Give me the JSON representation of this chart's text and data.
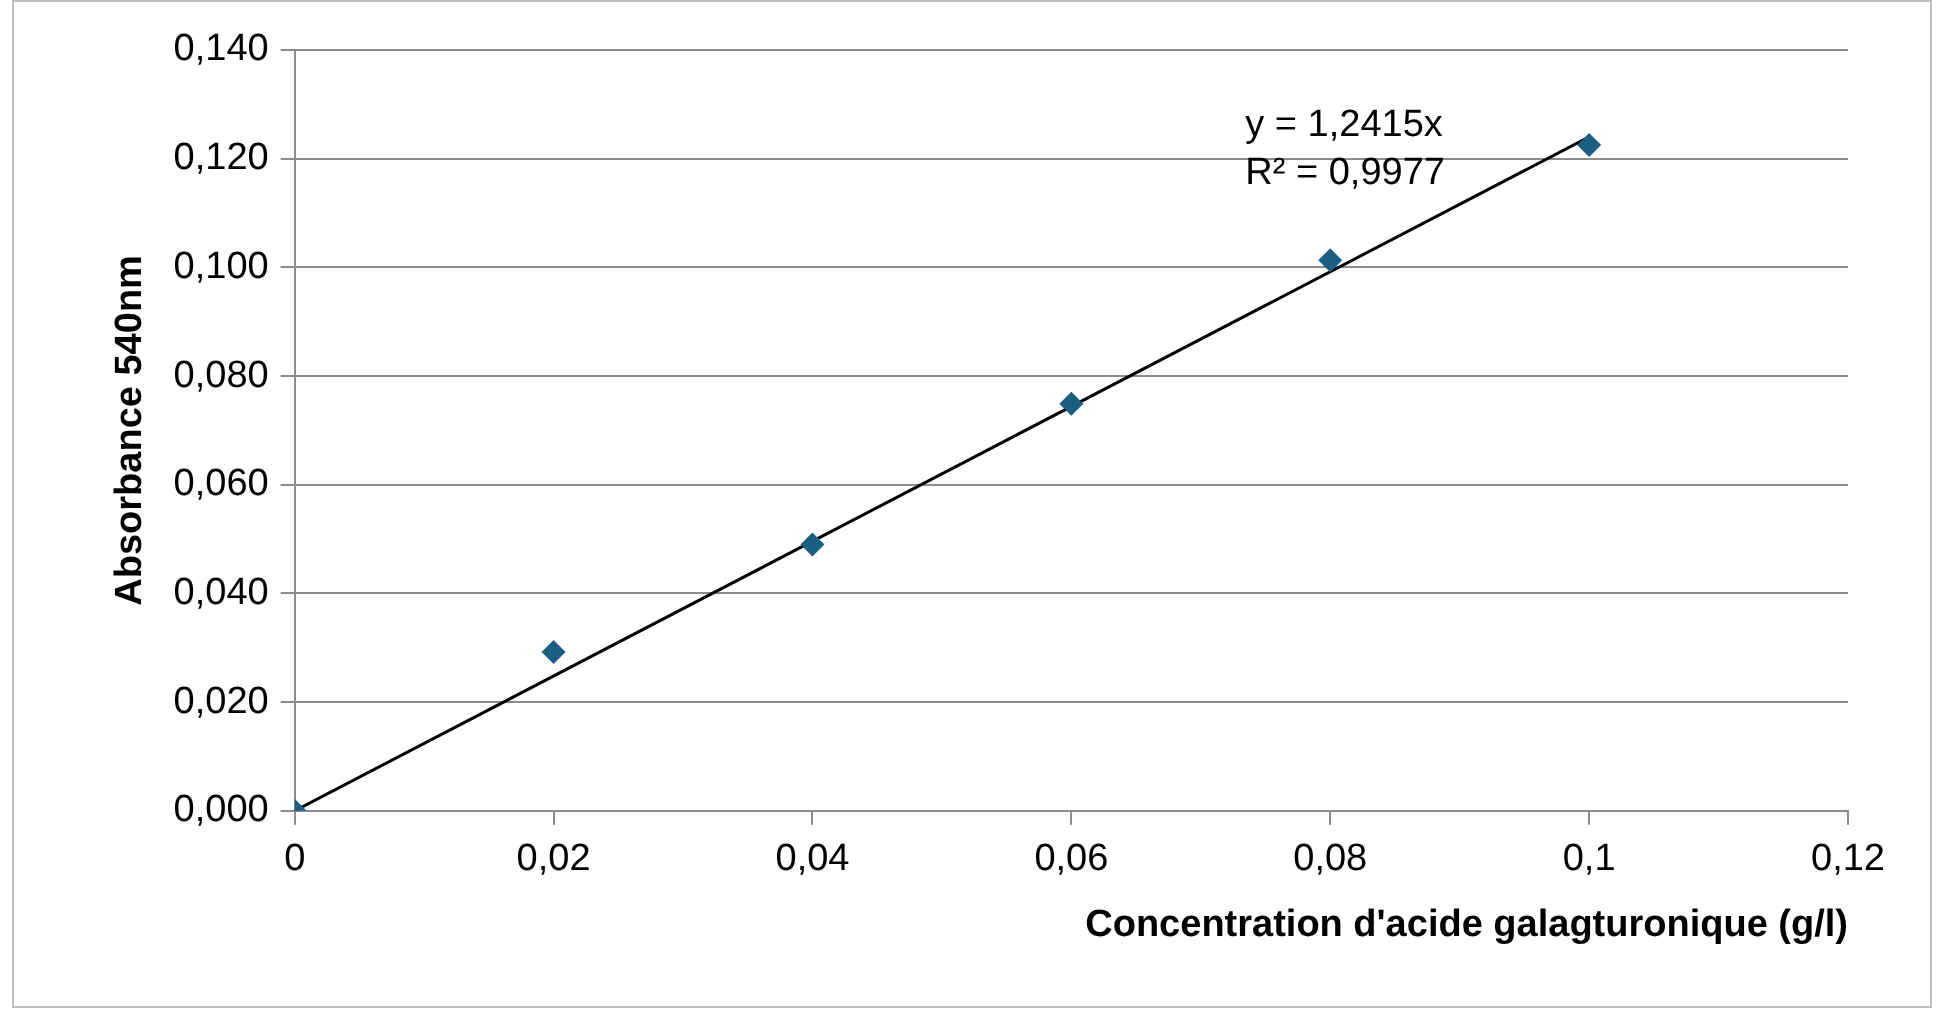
{
  "chart_data": {
    "type": "scatter",
    "xlabel": "Concentration d'acide galagturonique (g/l)",
    "ylabel": "Absorbance 540nm",
    "series": [
      {
        "color": "#1b5e83",
        "x": [
          0,
          0.02,
          0.04,
          0.06,
          0.08,
          0.1
        ],
        "values": [
          0,
          0.0292,
          0.049,
          0.0749,
          0.1013,
          0.1225
        ],
        "marker": "diamond"
      },
      {
        "type": "line",
        "color": "#000000",
        "x": [
          0,
          0.1
        ],
        "values": [
          0,
          0.124
        ],
        "marker": "none",
        "line_style": "solid"
      }
    ],
    "annotations": [
      "y = 1,2415x",
      "R² = 0,9977"
    ],
    "xlim": [
      0,
      0.12
    ],
    "xticks": [
      0,
      {
        "value": 0.02,
        "label": "0,02"
      },
      {
        "value": 0.04,
        "label": "0,04"
      },
      {
        "value": 0.06,
        "label": "0,06"
      },
      {
        "value": 0.08,
        "label": "0,08"
      },
      {
        "value": 0.1,
        "label": "0,1"
      },
      {
        "value": 0.12,
        "label": "0,12"
      }
    ],
    "ylim": [
      0,
      0.14
    ],
    "yticks": [
      {
        "value": 0,
        "label": "0,000"
      },
      {
        "value": 0.02,
        "label": "0,020"
      },
      {
        "value": 0.04,
        "label": "0,040"
      },
      {
        "value": 0.06,
        "label": "0,060"
      },
      {
        "value": 0.08,
        "label": "0,080"
      },
      {
        "value": 0.1,
        "label": "0,100"
      },
      {
        "value": 0.12,
        "label": "0,120"
      },
      {
        "value": 0.14,
        "label": "0,140"
      }
    ],
    "grid": "y",
    "legend": false
  }
}
